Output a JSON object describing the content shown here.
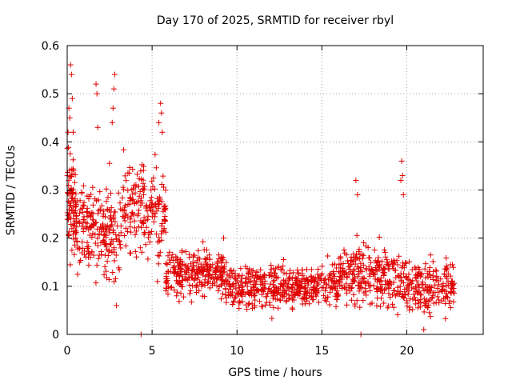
{
  "chart_data": {
    "type": "scatter",
    "title": "Day 170 of 2025, SRMTID for receiver rbyl",
    "xlabel": "GPS time / hours",
    "ylabel": "SRMTID / TECUs",
    "xlim": [
      0,
      24.5
    ],
    "ylim": [
      0,
      0.6
    ],
    "xticks": [
      0,
      5,
      10,
      15,
      20
    ],
    "xtick_labels": [
      "0",
      "5",
      "10",
      "15",
      "20"
    ],
    "yticks": [
      0,
      0.1,
      0.2,
      0.3,
      0.4,
      0.5,
      0.6
    ],
    "ytick_labels": [
      "0",
      "0.1",
      "0.2",
      "0.3",
      "0.4",
      "0.5",
      "0.6"
    ],
    "grid": true,
    "marker": "plus",
    "color": "#e00000",
    "series": [
      {
        "name": "SRMTID",
        "segments": [
          {
            "x_range": [
              0.0,
              0.5
            ],
            "y_center": 0.27,
            "y_spread": 0.09,
            "density": 80
          },
          {
            "x_range": [
              0.5,
              2.0
            ],
            "y_center": 0.22,
            "y_spread": 0.07,
            "density": 120
          },
          {
            "x_range": [
              2.0,
              3.2
            ],
            "y_center": 0.21,
            "y_spread": 0.08,
            "density": 100
          },
          {
            "x_range": [
              3.2,
              4.5
            ],
            "y_center": 0.26,
            "y_spread": 0.08,
            "density": 90
          },
          {
            "x_range": [
              4.5,
              5.8
            ],
            "y_center": 0.25,
            "y_spread": 0.08,
            "density": 90
          },
          {
            "x_range": [
              5.8,
              9.3
            ],
            "y_center": 0.13,
            "y_spread": 0.04,
            "density": 260
          },
          {
            "x_range": [
              9.3,
              16.0
            ],
            "y_center": 0.1,
            "y_spread": 0.035,
            "density": 460
          },
          {
            "x_range": [
              16.0,
              20.0
            ],
            "y_center": 0.12,
            "y_spread": 0.05,
            "density": 280
          },
          {
            "x_range": [
              20.0,
              22.8
            ],
            "y_center": 0.1,
            "y_spread": 0.045,
            "density": 190
          }
        ],
        "highlights": [
          {
            "x": 0.2,
            "y": 0.56
          },
          {
            "x": 0.25,
            "y": 0.54
          },
          {
            "x": 0.3,
            "y": 0.49
          },
          {
            "x": 0.1,
            "y": 0.47
          },
          {
            "x": 0.15,
            "y": 0.45
          },
          {
            "x": 0.05,
            "y": 0.42
          },
          {
            "x": 0.35,
            "y": 0.42
          },
          {
            "x": 1.7,
            "y": 0.52
          },
          {
            "x": 1.75,
            "y": 0.5
          },
          {
            "x": 1.8,
            "y": 0.43
          },
          {
            "x": 2.8,
            "y": 0.54
          },
          {
            "x": 2.75,
            "y": 0.51
          },
          {
            "x": 2.7,
            "y": 0.47
          },
          {
            "x": 2.65,
            "y": 0.44
          },
          {
            "x": 5.5,
            "y": 0.48
          },
          {
            "x": 5.55,
            "y": 0.46
          },
          {
            "x": 5.4,
            "y": 0.44
          },
          {
            "x": 5.6,
            "y": 0.42
          },
          {
            "x": 17.0,
            "y": 0.32
          },
          {
            "x": 17.1,
            "y": 0.29
          },
          {
            "x": 19.7,
            "y": 0.36
          },
          {
            "x": 19.75,
            "y": 0.33
          },
          {
            "x": 19.65,
            "y": 0.32
          },
          {
            "x": 19.8,
            "y": 0.29
          },
          {
            "x": 4.35,
            "y": 0.0
          },
          {
            "x": 17.3,
            "y": 0.0
          },
          {
            "x": 2.9,
            "y": 0.06
          },
          {
            "x": 21.0,
            "y": 0.01
          }
        ]
      }
    ]
  }
}
